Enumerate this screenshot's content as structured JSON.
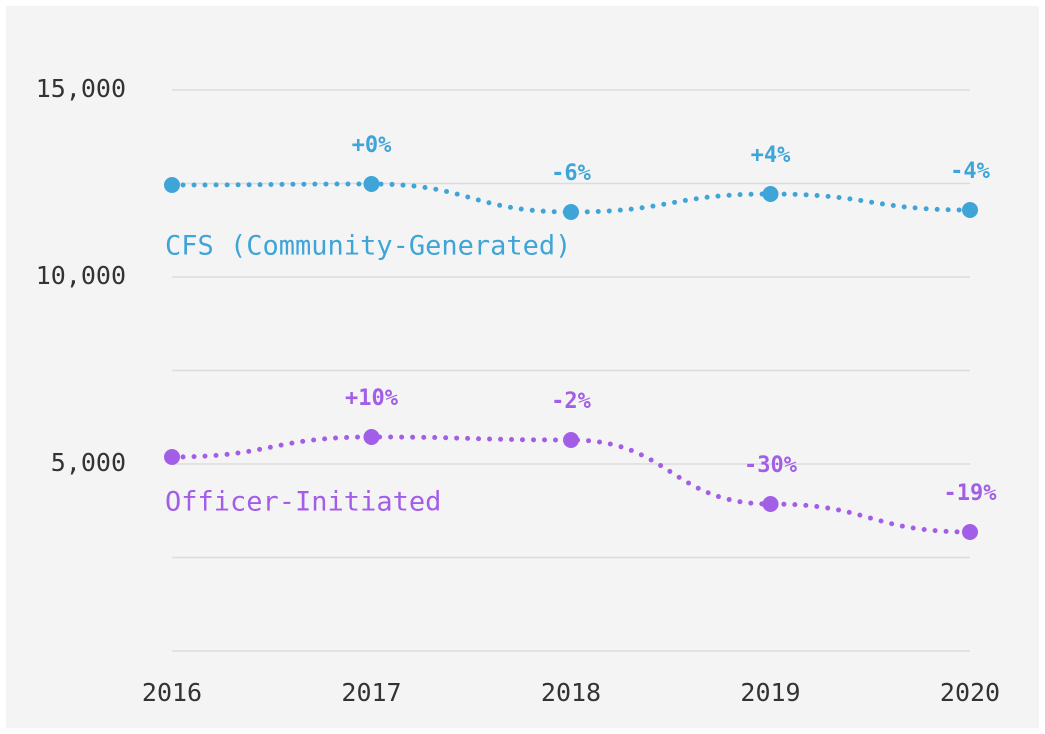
{
  "chart_data": {
    "type": "line",
    "categories": [
      "2016",
      "2017",
      "2018",
      "2019",
      "2020"
    ],
    "series": [
      {
        "name": "CFS (Community-Generated)",
        "color": "#3fa4d8",
        "values": [
          12460,
          12487,
          11738,
          12219,
          11791
        ],
        "change_labels": [
          null,
          "+0%",
          "-6%",
          "+4%",
          "-4%"
        ]
      },
      {
        "name": "Officer-Initiated",
        "color": "#a35ee8",
        "values": [
          5187,
          5722,
          5642,
          3930,
          3182
        ],
        "change_labels": [
          null,
          "+10%",
          "-2%",
          "-30%",
          "-19%"
        ]
      }
    ],
    "ylim": [
      0,
      15000
    ],
    "yticks": [
      {
        "value": 5000,
        "label": "5,000"
      },
      {
        "value": 10000,
        "label": "10,000"
      },
      {
        "value": 15000,
        "label": "15,000"
      }
    ],
    "minor_yticks": [
      0,
      2500,
      7500,
      12500
    ],
    "grid": true
  }
}
